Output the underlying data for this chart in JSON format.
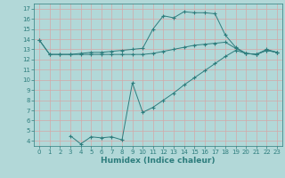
{
  "line1_x": [
    0,
    1,
    2,
    3,
    4,
    5,
    6,
    7,
    8,
    9,
    10,
    11,
    12,
    13,
    14,
    15,
    16,
    17,
    18,
    19,
    20,
    21,
    22,
    23
  ],
  "line1_y": [
    13.9,
    12.5,
    12.5,
    12.5,
    12.6,
    12.7,
    12.7,
    12.8,
    12.9,
    13.0,
    13.1,
    15.0,
    16.3,
    16.1,
    16.7,
    16.6,
    16.6,
    16.5,
    14.4,
    13.2,
    12.6,
    12.5,
    13.0,
    12.7
  ],
  "line2_x": [
    0,
    1,
    2,
    3,
    4,
    5,
    6,
    7,
    8,
    9,
    10,
    11,
    12,
    13,
    14,
    15,
    16,
    17,
    18,
    19,
    20,
    21,
    22,
    23
  ],
  "line2_y": [
    13.9,
    12.5,
    12.5,
    12.5,
    12.5,
    12.5,
    12.5,
    12.5,
    12.5,
    12.5,
    12.5,
    12.6,
    12.8,
    13.0,
    13.2,
    13.4,
    13.5,
    13.6,
    13.7,
    13.1,
    12.6,
    12.5,
    12.9,
    12.7
  ],
  "line3_x": [
    3,
    4,
    5,
    6,
    7,
    8,
    9,
    10,
    11,
    12,
    13,
    14,
    15,
    16,
    17,
    18,
    19,
    20,
    21,
    22,
    23
  ],
  "line3_y": [
    4.5,
    3.7,
    4.4,
    4.3,
    4.4,
    4.1,
    9.7,
    6.8,
    7.3,
    8.0,
    8.7,
    9.5,
    10.2,
    10.9,
    11.6,
    12.3,
    12.9,
    12.6,
    12.5,
    12.9,
    12.7
  ],
  "color": "#2d7d7d",
  "bg_color": "#b2d8d8",
  "grid_color": "#d4a8a8",
  "xlabel": "Humidex (Indice chaleur)",
  "xlim": [
    -0.5,
    23.5
  ],
  "ylim": [
    3.5,
    17.5
  ],
  "yticks": [
    4,
    5,
    6,
    7,
    8,
    9,
    10,
    11,
    12,
    13,
    14,
    15,
    16,
    17
  ],
  "xticks": [
    0,
    1,
    2,
    3,
    4,
    5,
    6,
    7,
    8,
    9,
    10,
    11,
    12,
    13,
    14,
    15,
    16,
    17,
    18,
    19,
    20,
    21,
    22,
    23
  ],
  "marker": "+",
  "markersize": 3,
  "linewidth": 0.7,
  "xlabel_fontsize": 6.5,
  "tick_fontsize": 5
}
